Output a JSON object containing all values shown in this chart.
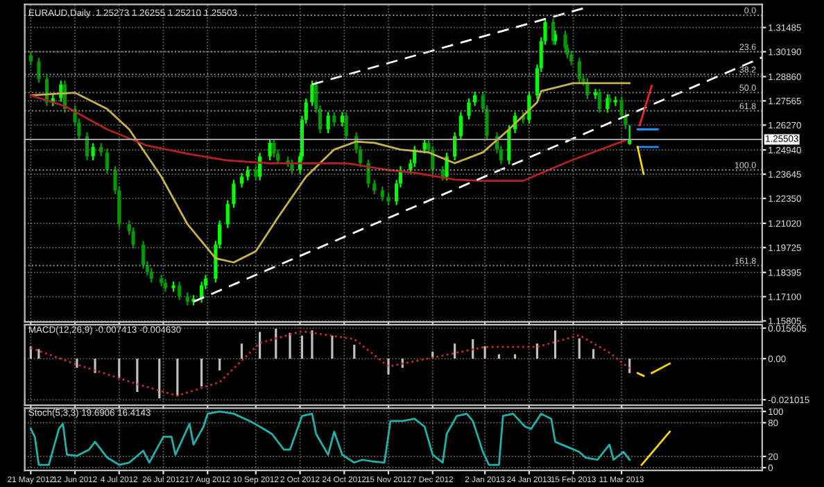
{
  "chart_data": [
    {
      "type": "candlestick",
      "title": "EURAUD,Daily  1.25273 1.26255 1.25210 1.25503",
      "colors": [
        "#009900",
        "#009900",
        "#009900",
        "#00ff00",
        "#00ff00",
        "#009900",
        "#009900",
        "#009900",
        "#009900",
        "#00ff00",
        "#009900",
        "#009900",
        "#009900",
        "#009900",
        "#009900",
        "#009900",
        "#009900",
        "#009900",
        "#009900",
        "#009900",
        "#009900",
        "#00ff00",
        "#009900",
        "#009900",
        "#00ff00",
        "#00ff00",
        "#00ff00",
        "#00ff00",
        "#00ff00",
        "#00ff00",
        "#00ff00",
        "#00ff00",
        "#00ff00",
        "#009900",
        "#00ff00",
        "#00ff00",
        "#009900",
        "#009900",
        "#009900",
        "#009900",
        "#00ff00",
        "#00ff00",
        "#00ff00",
        "#00ff00",
        "#009900",
        "#009900",
        "#00ff00",
        "#009900",
        "#00ff00",
        "#009900",
        "#009900",
        "#009900",
        "#009900",
        "#009900",
        "#009900",
        "#009900",
        "#00ff00",
        "#00ff00",
        "#00ff00",
        "#00ff00",
        "#00ff00",
        "#009900",
        "#009900",
        "#009900",
        "#00ff00",
        "#00ff00",
        "#00ff00",
        "#00ff00",
        "#00ff00",
        "#009900",
        "#009900",
        "#009900",
        "#009900",
        "#00ff00",
        "#00ff00",
        "#009900",
        "#00ff00",
        "#00ff00",
        "#00ff00",
        "#00ff00",
        "#009900",
        "#00ff00",
        "#009900",
        "#009900",
        "#009900",
        "#009900",
        "#009900",
        "#009900",
        "#00ff00",
        "#009900",
        "#00ff00",
        "#009900",
        "#00ff00",
        "#009900",
        "#009900",
        "#00ff00"
      ],
      "grid": true,
      "tick_labels": "y",
      "x": [
        "2012-05-21",
        "2012-05-25",
        "2012-05-29",
        "2012-06-01",
        "2012-06-05",
        "2012-06-07",
        "2012-06-12",
        "2012-06-14",
        "2012-06-18",
        "2012-06-21",
        "2012-06-25",
        "2012-06-28",
        "2012-07-02",
        "2012-07-04",
        "2012-07-09",
        "2012-07-11",
        "2012-07-16",
        "2012-07-18",
        "2012-07-20",
        "2012-07-25",
        "2012-07-27",
        "2012-07-31",
        "2012-08-03",
        "2012-08-07",
        "2012-08-10",
        "2012-08-14",
        "2012-08-16",
        "2012-08-21",
        "2012-08-23",
        "2012-08-27",
        "2012-08-30",
        "2012-09-03",
        "2012-09-06",
        "2012-09-10",
        "2012-09-12",
        "2012-09-17",
        "2012-09-19",
        "2012-09-21",
        "2012-09-26",
        "2012-09-28",
        "2012-10-02",
        "2012-10-03",
        "2012-10-05",
        "2012-10-08",
        "2012-10-10",
        "2012-10-12",
        "2012-10-16",
        "2012-10-19",
        "2012-10-23",
        "2012-10-25",
        "2012-10-30",
        "2012-11-01",
        "2012-11-05",
        "2012-11-08",
        "2012-11-12",
        "2012-11-15",
        "2012-11-19",
        "2012-11-21",
        "2012-11-26",
        "2012-11-28",
        "2012-12-03",
        "2012-12-05",
        "2012-12-07",
        "2012-12-12",
        "2012-12-14",
        "2012-12-18",
        "2012-12-21",
        "2012-12-25",
        "2012-12-28",
        "2013-01-01",
        "2013-01-03",
        "2013-01-08",
        "2013-01-10",
        "2013-01-14",
        "2013-01-17",
        "2013-01-21",
        "2013-01-24",
        "2013-01-28",
        "2013-01-30",
        "2013-02-01",
        "2013-02-05",
        "2013-02-06",
        "2013-02-11",
        "2013-02-12",
        "2013-02-14",
        "2013-02-18",
        "2013-02-20",
        "2013-02-22",
        "2013-02-26",
        "2013-02-28",
        "2013-03-04",
        "2013-03-05",
        "2013-03-08",
        "2013-03-11",
        "2013-03-13",
        "2013-03-15"
      ],
      "ohlc": [
        [
          1.3,
          1.302,
          1.2947,
          1.2967
        ],
        [
          1.2967,
          1.2987,
          1.2853,
          1.2873
        ],
        [
          1.2873,
          1.2893,
          1.2729,
          1.2749
        ],
        [
          1.2749,
          1.2791,
          1.2729,
          1.2771
        ],
        [
          1.2771,
          1.2864,
          1.2751,
          1.2844
        ],
        [
          1.2844,
          1.2864,
          1.2693,
          1.2713
        ],
        [
          1.2713,
          1.2733,
          1.2621,
          1.2641
        ],
        [
          1.2641,
          1.2661,
          1.2548,
          1.2568
        ],
        [
          1.2568,
          1.2588,
          1.2439,
          1.2459
        ],
        [
          1.2459,
          1.253,
          1.2439,
          1.251
        ],
        [
          1.251,
          1.253,
          1.2461,
          1.2481
        ],
        [
          1.2481,
          1.2501,
          1.2367,
          1.2387
        ],
        [
          1.2387,
          1.2407,
          1.2258,
          1.2278
        ],
        [
          1.2278,
          1.2298,
          1.2077,
          1.2097
        ],
        [
          1.2097,
          1.2117,
          1.204,
          1.206
        ],
        [
          1.206,
          1.208,
          1.1968,
          1.1988
        ],
        [
          1.1988,
          1.2008,
          1.1859,
          1.1879
        ],
        [
          1.1879,
          1.1899,
          1.1823,
          1.1843
        ],
        [
          1.1843,
          1.1863,
          1.1786,
          1.1806
        ],
        [
          1.1806,
          1.1826,
          1.1765,
          1.1785
        ],
        [
          1.1785,
          1.1805,
          1.1736,
          1.1756
        ],
        [
          1.1756,
          1.179,
          1.1736,
          1.177
        ],
        [
          1.177,
          1.179,
          1.1692,
          1.1712
        ],
        [
          1.1712,
          1.1732,
          1.1663,
          1.1683
        ],
        [
          1.1683,
          1.1718,
          1.1663,
          1.1698
        ],
        [
          1.1698,
          1.179,
          1.1678,
          1.177
        ],
        [
          1.177,
          1.1826,
          1.175,
          1.1806
        ],
        [
          1.1806,
          1.2008,
          1.1786,
          1.1988
        ],
        [
          1.1988,
          1.2117,
          1.1968,
          1.2097
        ],
        [
          1.2097,
          1.2225,
          1.2077,
          1.2205
        ],
        [
          1.2205,
          1.2334,
          1.2185,
          1.2314
        ],
        [
          1.2314,
          1.2371,
          1.2294,
          1.2351
        ],
        [
          1.2351,
          1.2407,
          1.2331,
          1.2387
        ],
        [
          1.2387,
          1.2407,
          1.2331,
          1.2351
        ],
        [
          1.2351,
          1.2479,
          1.2331,
          1.2459
        ],
        [
          1.2459,
          1.2552,
          1.2439,
          1.2532
        ],
        [
          1.2532,
          1.2552,
          1.2454,
          1.2474
        ],
        [
          1.2474,
          1.2494,
          1.2418,
          1.2438
        ],
        [
          1.2438,
          1.2458,
          1.2403,
          1.2423
        ],
        [
          1.2423,
          1.2443,
          1.2367,
          1.2387
        ],
        [
          1.2387,
          1.2479,
          1.2367,
          1.2459
        ],
        [
          1.2459,
          1.2675,
          1.2439,
          1.2655
        ],
        [
          1.2655,
          1.2769,
          1.2635,
          1.2749
        ],
        [
          1.2749,
          1.2864,
          1.2729,
          1.2844
        ],
        [
          1.2844,
          1.2864,
          1.2693,
          1.2713
        ],
        [
          1.2713,
          1.2733,
          1.2584,
          1.2604
        ],
        [
          1.2604,
          1.2697,
          1.2584,
          1.2677
        ],
        [
          1.2677,
          1.2697,
          1.2621,
          1.2641
        ],
        [
          1.2641,
          1.2697,
          1.2621,
          1.2677
        ],
        [
          1.2677,
          1.2697,
          1.2548,
          1.2568
        ],
        [
          1.2568,
          1.2588,
          1.2476,
          1.2496
        ],
        [
          1.2496,
          1.2516,
          1.2403,
          1.2423
        ],
        [
          1.2423,
          1.2443,
          1.2294,
          1.2314
        ],
        [
          1.2314,
          1.2334,
          1.2258,
          1.2278
        ],
        [
          1.2278,
          1.2298,
          1.2222,
          1.2242
        ],
        [
          1.2242,
          1.2262,
          1.22,
          1.222
        ],
        [
          1.222,
          1.2334,
          1.22,
          1.2314
        ],
        [
          1.2314,
          1.2407,
          1.2294,
          1.2387
        ],
        [
          1.2387,
          1.2443,
          1.2367,
          1.2423
        ],
        [
          1.2423,
          1.2516,
          1.2403,
          1.2496
        ],
        [
          1.2496,
          1.2552,
          1.2476,
          1.2532
        ],
        [
          1.2532,
          1.2552,
          1.2476,
          1.2496
        ],
        [
          1.2496,
          1.2516,
          1.2367,
          1.2387
        ],
        [
          1.2387,
          1.2407,
          1.2331,
          1.2351
        ],
        [
          1.2351,
          1.2479,
          1.2331,
          1.2459
        ],
        [
          1.2459,
          1.2588,
          1.2439,
          1.2568
        ],
        [
          1.2568,
          1.2697,
          1.2548,
          1.2677
        ],
        [
          1.2677,
          1.2769,
          1.2657,
          1.2749
        ],
        [
          1.2749,
          1.2806,
          1.2729,
          1.2786
        ],
        [
          1.2786,
          1.2806,
          1.2693,
          1.2713
        ],
        [
          1.2713,
          1.2733,
          1.2548,
          1.2568
        ],
        [
          1.2568,
          1.2588,
          1.2476,
          1.2496
        ],
        [
          1.2496,
          1.2516,
          1.2418,
          1.2438
        ],
        [
          1.2438,
          1.2624,
          1.2418,
          1.2604
        ],
        [
          1.2604,
          1.2697,
          1.2584,
          1.2677
        ],
        [
          1.2677,
          1.2697,
          1.2635,
          1.2655
        ],
        [
          1.2655,
          1.2806,
          1.2635,
          1.2786
        ],
        [
          1.2786,
          1.2951,
          1.2766,
          1.2931
        ],
        [
          1.2931,
          1.3096,
          1.2911,
          1.3076
        ],
        [
          1.3076,
          1.3198,
          1.3056,
          1.3178
        ],
        [
          1.3178,
          1.3198,
          1.3056,
          1.3076
        ],
        [
          1.3076,
          1.3132,
          1.3056,
          1.3112
        ],
        [
          1.3112,
          1.3132,
          1.302,
          1.304
        ],
        [
          1.304,
          1.306,
          1.2983,
          1.3003
        ],
        [
          1.3003,
          1.3023,
          1.2947,
          1.2967
        ],
        [
          1.2967,
          1.2987,
          1.2853,
          1.2873
        ],
        [
          1.2873,
          1.2893,
          1.2838,
          1.2858
        ],
        [
          1.2858,
          1.2878,
          1.2766,
          1.2786
        ],
        [
          1.2786,
          1.282,
          1.2766,
          1.28
        ],
        [
          1.28,
          1.282,
          1.2693,
          1.2713
        ],
        [
          1.2713,
          1.2791,
          1.2693,
          1.2771
        ],
        [
          1.2771,
          1.2791,
          1.2729,
          1.2749
        ],
        [
          1.2749,
          1.278,
          1.2729,
          1.276
        ],
        [
          1.276,
          1.278,
          1.2657,
          1.2677
        ],
        [
          1.2677,
          1.2697,
          1.2606,
          1.2626
        ],
        [
          1.25273,
          1.26255,
          1.2521,
          1.25503
        ]
      ],
      "series": [
        {
          "type": "line",
          "color": "#c8b44a",
          "x": [
            "2012-05-21",
            "2012-06-12",
            "2012-06-28",
            "2012-07-09",
            "2012-07-25",
            "2012-08-07",
            "2012-08-21",
            "2012-08-30",
            "2012-09-10",
            "2012-09-21",
            "2012-10-05",
            "2012-10-19",
            "2012-10-30",
            "2012-11-08",
            "2012-11-21",
            "2012-12-05",
            "2012-12-18",
            "2013-01-01",
            "2013-01-14",
            "2013-01-28",
            "2013-01-30",
            "2013-02-15",
            "2013-03-15"
          ],
          "values": [
            1.2786,
            1.28,
            1.2713,
            1.2604,
            1.2351,
            1.2097,
            1.1915,
            1.1893,
            1.1952,
            1.2133,
            1.2351,
            1.2496,
            1.2539,
            1.2532,
            1.2496,
            1.2481,
            1.2423,
            1.2481,
            1.2604,
            1.2749,
            1.2808,
            1.2851,
            1.2851
          ]
        },
        {
          "type": "line",
          "color": "#b22222",
          "x": [
            "2012-05-21",
            "2012-06-07",
            "2012-06-28",
            "2012-07-18",
            "2012-08-07",
            "2012-08-27",
            "2012-09-17",
            "2012-10-05",
            "2012-10-25",
            "2012-11-15",
            "2012-11-28",
            "2012-12-18",
            "2013-01-01",
            "2013-01-21",
            "2013-02-14",
            "2013-03-13"
          ],
          "values": [
            1.2786,
            1.2728,
            1.2604,
            1.2517,
            1.2474,
            1.2438,
            1.2423,
            1.2423,
            1.2423,
            1.2387,
            1.2372,
            1.2336,
            1.2329,
            1.2329,
            1.2438,
            1.2546
          ]
        },
        {
          "type": "line",
          "color": "#ffffff",
          "line_style": "dashed",
          "x": [
            "2012-10-08",
            "2013-02-22"
          ],
          "values": [
            1.2844,
            1.3257
          ]
        },
        {
          "type": "line",
          "color": "#ffffff",
          "line_style": "dashed",
          "x": [
            "2012-08-10",
            "2013-05-20"
          ],
          "values": [
            1.1683,
            1.2989
          ]
        },
        {
          "type": "line",
          "color": "#1e90ff",
          "x": [
            "2013-03-19",
            "2013-03-29"
          ],
          "values": [
            1.2604,
            1.2604
          ]
        },
        {
          "type": "line",
          "color": "#1e90ff",
          "x": [
            "2013-03-19",
            "2013-03-29"
          ],
          "values": [
            1.251,
            1.251
          ]
        },
        {
          "type": "line",
          "color": "#ff2020",
          "x": [
            "2013-03-20",
            "2013-03-26"
          ],
          "values": [
            1.2626,
            1.2837
          ]
        },
        {
          "type": "line",
          "color": "#ffd700",
          "x": [
            "2013-03-19",
            "2013-03-22"
          ],
          "values": [
            1.251,
            1.2365
          ]
        }
      ],
      "ref_lines": [
        {
          "axis": "y",
          "value": 1.3214,
          "color": "#909090",
          "line_style": "dotted"
        },
        {
          "axis": "y",
          "value": 1.3019,
          "color": "#909090",
          "line_style": "dotted"
        },
        {
          "axis": "y",
          "value": 1.2898,
          "color": "#909090",
          "line_style": "dotted"
        },
        {
          "axis": "y",
          "value": 1.2801,
          "color": "#909090",
          "line_style": "dotted"
        },
        {
          "axis": "y",
          "value": 1.2703,
          "color": "#909090",
          "line_style": "dotted"
        },
        {
          "axis": "y",
          "value": 1.2387,
          "color": "#909090",
          "line_style": "dotted"
        },
        {
          "axis": "y",
          "value": 1.1876,
          "color": "#909090",
          "line_style": "dotted"
        },
        {
          "axis": "y",
          "value": 1.25503,
          "label": "1.25503",
          "color": "#a0a0a0",
          "line_style": "solid"
        }
      ],
      "annotations": [
        {
          "text": "0.0",
          "x": "2013-05-17",
          "y": 1.3214
        },
        {
          "text": "23.6",
          "x": "2013-05-17",
          "y": 1.3019
        },
        {
          "text": "38.2",
          "x": "2013-05-17",
          "y": 1.2898
        },
        {
          "text": "50.0",
          "x": "2013-05-17",
          "y": 1.2801
        },
        {
          "text": "61.8",
          "x": "2013-05-17",
          "y": 1.2703
        },
        {
          "text": "100.0",
          "x": "2013-05-17",
          "y": 1.2387
        },
        {
          "text": "161.8",
          "x": "2013-05-17",
          "y": 1.1876
        }
      ],
      "xlim": [
        "2012-05-18",
        "2013-05-20"
      ],
      "xticks": [
        {
          "value": "2012-05-21",
          "label": null
        },
        {
          "value": "2012-06-12",
          "label": null
        },
        {
          "value": "2012-07-04",
          "label": null
        },
        {
          "value": "2012-07-26",
          "label": null
        },
        {
          "value": "2012-08-17",
          "label": null
        },
        {
          "value": "2012-09-10",
          "label": null
        },
        {
          "value": "2012-10-02",
          "label": null
        },
        {
          "value": "2012-10-24",
          "label": null
        },
        {
          "value": "2012-11-15",
          "label": null
        },
        {
          "value": "2012-12-07",
          "label": null
        },
        {
          "value": "2013-01-02",
          "label": null
        },
        {
          "value": "2013-01-24",
          "label": null
        },
        {
          "value": "2013-02-15",
          "label": null
        },
        {
          "value": "2013-03-11",
          "label": null
        }
      ],
      "ylim": [
        1.1575,
        1.3272
      ],
      "yticks": [
        1.31485,
        {
          "value": 1.3019,
          "label": "1.30190"
        },
        {
          "value": 1.2886,
          "label": "1.28860"
        },
        1.27565,
        {
          "value": 1.2627,
          "label": "1.26270"
        },
        {
          "value": 1.2494,
          "label": "1.24940"
        },
        1.23645,
        {
          "value": 1.2235,
          "label": "1.22350"
        },
        {
          "value": 1.2102,
          "label": "1.21020"
        },
        1.19725,
        1.18395,
        {
          "value": 1.171,
          "label": "1.17100"
        },
        1.15805
      ]
    },
    {
      "type": "bar",
      "title": "MACD(12,26,9) -0.007413 -0.004630",
      "grid": true,
      "tick_labels": "y",
      "series": [
        {
          "type": "bar",
          "color": "#c0c0c0",
          "x": [
            "2012-05-21",
            "2012-05-25",
            "2012-06-04",
            "2012-06-13",
            "2012-06-22",
            "2012-07-04",
            "2012-07-13",
            "2012-07-24",
            "2012-08-02",
            "2012-08-14",
            "2012-08-23",
            "2012-08-28",
            "2012-09-03",
            "2012-09-12",
            "2012-09-20",
            "2012-09-27",
            "2012-10-03",
            "2012-10-08",
            "2012-10-18",
            "2012-10-29",
            "2012-11-07",
            "2012-11-15",
            "2012-11-22",
            "2012-12-03",
            "2012-12-07",
            "2012-12-18",
            "2012-12-27",
            "2013-01-02",
            "2013-01-09",
            "2013-01-17",
            "2013-01-28",
            "2013-02-06",
            "2013-02-18",
            "2013-02-25",
            "2013-03-05",
            "2013-03-15"
          ],
          "values": [
            0.0063,
            0.0049,
            0,
            -0.0047,
            -0.0074,
            -0.0101,
            -0.017,
            -0.0203,
            -0.0192,
            -0.0142,
            -0.006,
            0,
            0.0077,
            0.0137,
            0.0153,
            0.0132,
            0.0118,
            0.0145,
            0.0118,
            0.0071,
            0,
            -0.0082,
            -0.0047,
            0,
            0.0036,
            0.0077,
            0.0099,
            0.0063,
            0.0022,
            0.0022,
            0.0077,
            0.0145,
            0.0104,
            0.0049,
            0,
            -0.0074
          ]
        },
        {
          "type": "line",
          "color": "#c03030",
          "line_style": "dotted",
          "x": [
            "2012-05-21",
            "2012-06-13",
            "2012-07-13",
            "2012-08-02",
            "2012-08-23",
            "2012-09-12",
            "2012-10-03",
            "2012-10-29",
            "2012-11-15",
            "2012-12-07",
            "2013-01-02",
            "2013-01-28",
            "2013-02-18",
            "2013-03-05",
            "2013-03-15"
          ],
          "values": [
            0.0055,
            -0.003,
            -0.013,
            -0.019,
            -0.012,
            0.008,
            0.014,
            0.01,
            -0.004,
            0.0005,
            0.006,
            0.006,
            0.012,
            0.003,
            -0.005
          ]
        },
        {
          "type": "line",
          "color": "#ffd700",
          "x": [
            "2013-03-19",
            "2013-03-22"
          ],
          "values": [
            -0.0074,
            -0.0088
          ]
        },
        {
          "type": "line",
          "color": "#ffd700",
          "x": [
            "2013-03-26",
            "2013-04-04"
          ],
          "values": [
            -0.0074,
            -0.0025
          ]
        }
      ],
      "xlim": [
        "2012-05-18",
        "2013-05-20"
      ],
      "xticks": [
        {
          "value": "2012-05-21",
          "label": null
        },
        {
          "value": "2012-06-12",
          "label": null
        },
        {
          "value": "2012-07-04",
          "label": null
        },
        {
          "value": "2012-07-26",
          "label": null
        },
        {
          "value": "2012-08-17",
          "label": null
        },
        {
          "value": "2012-09-10",
          "label": null
        },
        {
          "value": "2012-10-02",
          "label": null
        },
        {
          "value": "2012-10-24",
          "label": null
        },
        {
          "value": "2012-11-15",
          "label": null
        },
        {
          "value": "2012-12-07",
          "label": null
        },
        {
          "value": "2013-01-02",
          "label": null
        },
        {
          "value": "2013-01-24",
          "label": null
        },
        {
          "value": "2013-02-15",
          "label": null
        },
        {
          "value": "2013-03-11",
          "label": null
        }
      ],
      "ylim": [
        -0.0238,
        0.0173
      ],
      "yticks": [
        {
          "value": 0.015605,
          "label": "0.015605"
        },
        {
          "value": 0,
          "label": "0.00"
        },
        {
          "value": -0.021015,
          "label": "-0.021015"
        }
      ]
    },
    {
      "type": "line",
      "title": "Stoch(5,3,3) 19.6906 16.4143",
      "grid": true,
      "series": [
        {
          "type": "line",
          "color": "#20b2aa",
          "x": [
            "2012-05-21",
            "2012-05-23",
            "2012-05-25",
            "2012-05-30",
            "2012-06-04",
            "2012-06-06",
            "2012-06-08",
            "2012-06-13",
            "2012-06-19",
            "2012-06-22",
            "2012-06-28",
            "2012-07-04",
            "2012-07-09",
            "2012-07-16",
            "2012-07-19",
            "2012-07-26",
            "2012-07-30",
            "2012-08-01",
            "2012-08-08",
            "2012-08-10",
            "2012-08-15",
            "2012-08-17",
            "2012-08-23",
            "2012-08-30",
            "2012-09-07",
            "2012-09-12",
            "2012-09-18",
            "2012-09-24",
            "2012-09-27",
            "2012-10-03",
            "2012-10-08",
            "2012-10-10",
            "2012-10-16",
            "2012-10-19",
            "2012-10-23",
            "2012-10-29",
            "2012-11-02",
            "2012-11-07",
            "2012-11-13",
            "2012-11-16",
            "2012-11-22",
            "2012-11-28",
            "2012-12-03",
            "2012-12-07",
            "2012-12-12",
            "2012-12-14",
            "2012-12-19",
            "2012-12-24",
            "2012-12-27",
            "2013-01-01",
            "2013-01-04",
            "2013-01-09",
            "2013-01-11",
            "2013-01-16",
            "2013-01-22",
            "2013-01-25",
            "2013-01-30",
            "2013-02-04",
            "2013-02-06",
            "2013-02-12",
            "2013-02-18",
            "2013-02-21",
            "2013-02-27",
            "2013-03-05",
            "2013-03-07",
            "2013-03-12",
            "2013-03-15"
          ],
          "values": [
            69,
            55,
            5,
            5,
            69,
            78,
            23,
            21,
            32,
            46,
            18,
            5,
            9,
            30,
            9,
            55,
            55,
            23,
            78,
            41,
            73,
            96,
            100,
            96,
            83,
            73,
            60,
            32,
            32,
            92,
            96,
            60,
            23,
            64,
            23,
            9,
            14,
            11,
            9,
            83,
            83,
            87,
            73,
            23,
            9,
            60,
            92,
            96,
            83,
            28,
            5,
            5,
            92,
            96,
            73,
            69,
            96,
            87,
            46,
            37,
            28,
            18,
            14,
            41,
            14,
            28,
            14
          ]
        },
        {
          "type": "line",
          "color": "#ffd700",
          "x": [
            "2013-03-21",
            "2013-04-04"
          ],
          "values": [
            5,
            64
          ]
        }
      ],
      "xlim": [
        "2012-05-18",
        "2013-05-20"
      ],
      "xticks": [
        {
          "value": "2012-05-21",
          "label": "21 May 2012"
        },
        {
          "value": "2012-06-12",
          "label": "12 Jun 2012"
        },
        {
          "value": "2012-07-04",
          "label": "4 Jul 2012"
        },
        {
          "value": "2012-07-26",
          "label": "26 Jul 2012"
        },
        {
          "value": "2012-08-17",
          "label": "17 Aug 2012"
        },
        {
          "value": "2012-09-10",
          "label": "10 Sep 2012"
        },
        {
          "value": "2012-10-02",
          "label": "2 Oct 2012"
        },
        {
          "value": "2012-10-24",
          "label": "24 Oct 2012"
        },
        {
          "value": "2012-11-15",
          "label": "15 Nov 2012"
        },
        {
          "value": "2012-12-07",
          "label": "7 Dec 2012"
        },
        {
          "value": "2013-01-02",
          "label": "2 Jan 2013"
        },
        {
          "value": "2013-01-24",
          "label": "24 Jan 2013"
        },
        {
          "value": "2013-02-15",
          "label": "15 Feb 2013"
        },
        {
          "value": "2013-03-11",
          "label": "11 Mar 2013"
        }
      ],
      "ylim": [
        -5,
        106
      ],
      "yticks": [
        0,
        20,
        80,
        100
      ]
    }
  ]
}
